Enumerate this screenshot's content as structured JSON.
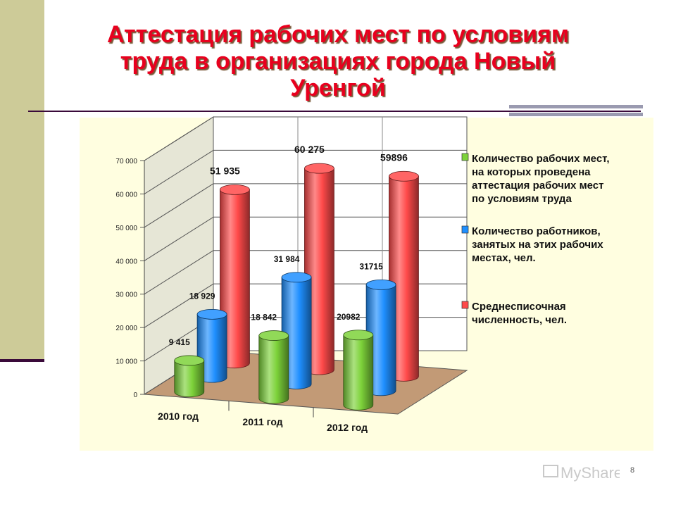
{
  "slide": {
    "title": "Аттестация рабочих мест по условиям труда в организациях города Новый Уренгой",
    "page_number": "8",
    "watermark": "MyShared"
  },
  "colors": {
    "green": "#7dd23a",
    "blue": "#1f8fff",
    "red": "#ff4a4a",
    "title": "#e8001e"
  },
  "chart_data": {
    "type": "bar",
    "style": "3d-cylinder",
    "categories": [
      "2010 год",
      "2011 год",
      "2012 год"
    ],
    "series": [
      {
        "name": "Количество рабочих мест, на которых проведена аттестация рабочих мест по условиям труда",
        "values": [
          9415,
          18842,
          20982
        ],
        "labels": [
          "9 415",
          "18 842",
          "20982"
        ],
        "color": "green",
        "legend_lines": [
          "Количество рабочих мест,",
          "на которых проведена",
          "аттестация рабочих мест",
          "по условиям труда"
        ]
      },
      {
        "name": "Количество работников, занятых на этих рабочих местах, чел.",
        "values": [
          18929,
          31984,
          31715
        ],
        "labels": [
          "18 929",
          "31 984",
          "31715"
        ],
        "color": "blue",
        "legend_lines": [
          "Количество работников,",
          "занятых на этих рабочих",
          "местах, чел."
        ]
      },
      {
        "name": "Среднесписочная численность, чел.",
        "values": [
          51935,
          60275,
          59896
        ],
        "labels": [
          "51 935",
          "60 275",
          "59896"
        ],
        "color": "red",
        "legend_lines": [
          "Среднесписочная",
          "численность, чел."
        ]
      }
    ],
    "ylim": [
      0,
      70000
    ],
    "yticks": [
      "0",
      "10 000",
      "20 000",
      "30 000",
      "40 000",
      "50 000",
      "60 000",
      "70 000"
    ],
    "grid": true,
    "legend_position": "right"
  }
}
